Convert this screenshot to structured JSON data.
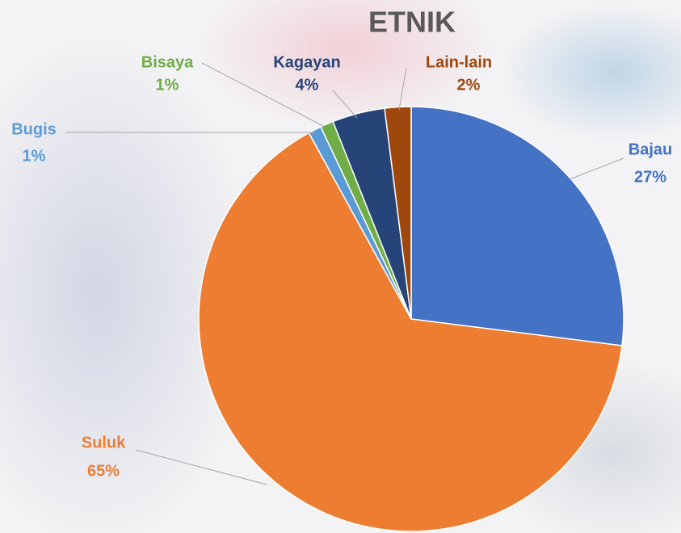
{
  "chart_data": {
    "type": "pie",
    "title": "ETNIK",
    "categories": [
      "Bajau",
      "Suluk",
      "Bugis",
      "Bisaya",
      "Kagayan",
      "Lain-lain"
    ],
    "values": [
      27,
      65,
      1,
      1,
      4,
      2
    ],
    "value_labels": [
      "27%",
      "65%",
      "1%",
      "1%",
      "4%",
      "2%"
    ],
    "colors": [
      "#4472c4",
      "#ed7d31",
      "#5b9bd5",
      "#70ad47",
      "#264478",
      "#9e480e"
    ]
  }
}
